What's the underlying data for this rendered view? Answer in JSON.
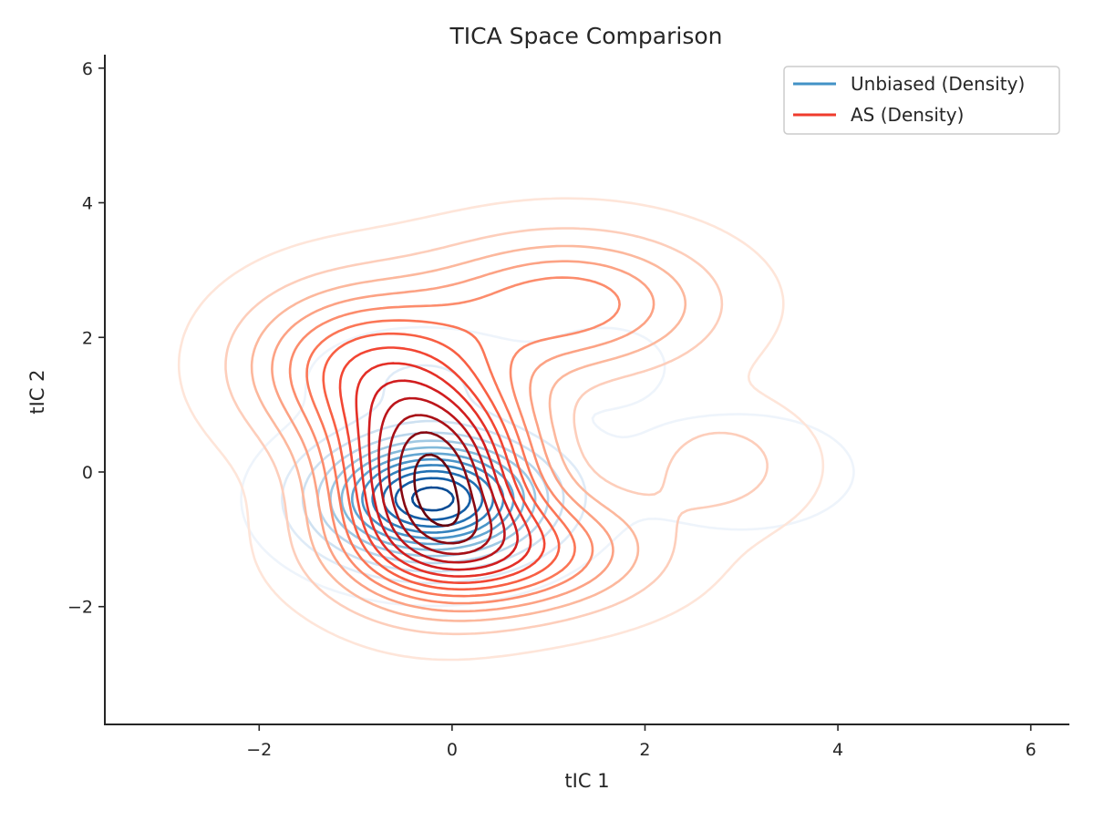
{
  "chart_data": {
    "type": "contour",
    "title": "TICA Space Comparison",
    "xlabel": "tIC 1",
    "ylabel": "tIC 2",
    "xlim": [
      -3.6,
      6.4
    ],
    "ylim": [
      -3.75,
      6.2
    ],
    "xticks": [
      -2,
      0,
      2,
      4,
      6
    ],
    "yticks": [
      -2,
      0,
      2,
      4,
      6
    ],
    "xtick_labels": [
      "−2",
      "0",
      "2",
      "4",
      "6"
    ],
    "ytick_labels": [
      "−2",
      "0",
      "2",
      "4",
      "6"
    ],
    "grid": false,
    "legend_position": "top-right",
    "series": [
      {
        "name": "Unbiased (Density)",
        "color": "#4292c6",
        "colormap": [
          "#eef4fb",
          "#d6e6f4",
          "#b7d4ea",
          "#8cbfdd",
          "#5aa1cf",
          "#3585bf",
          "#1a68ae",
          "#084b94"
        ],
        "components": [
          {
            "x": -0.2,
            "y": -0.4,
            "sx": 0.75,
            "sy": 0.6,
            "w": 1.0
          },
          {
            "x": -0.3,
            "y": 1.4,
            "sx": 0.7,
            "sy": 0.45,
            "w": 0.12
          },
          {
            "x": 1.6,
            "y": 1.6,
            "sx": 0.5,
            "sy": 0.45,
            "w": 0.06
          },
          {
            "x": 3.0,
            "y": 0.0,
            "sx": 0.75,
            "sy": 0.55,
            "w": 0.1
          }
        ],
        "levels": 12
      },
      {
        "name": "AS (Density)",
        "color": "#ef3b2c",
        "colormap": [
          "#fee5d9",
          "#fcbba1",
          "#fc9272",
          "#fb6a4a",
          "#ef3b2c",
          "#cb181d",
          "#a50f15",
          "#67000d"
        ],
        "components": [
          {
            "x": -0.2,
            "y": 0.0,
            "sx": 0.7,
            "sy": 1.0,
            "w": 1.0
          },
          {
            "x": -1.0,
            "y": 1.6,
            "sx": 0.8,
            "sy": 0.8,
            "w": 0.45
          },
          {
            "x": 1.2,
            "y": 2.5,
            "sx": 1.0,
            "sy": 0.7,
            "w": 0.4
          },
          {
            "x": 0.5,
            "y": -1.2,
            "sx": 1.0,
            "sy": 0.6,
            "w": 0.5
          },
          {
            "x": 2.8,
            "y": 0.1,
            "sx": 0.6,
            "sy": 0.6,
            "w": 0.15
          }
        ],
        "levels": 14
      }
    ]
  }
}
